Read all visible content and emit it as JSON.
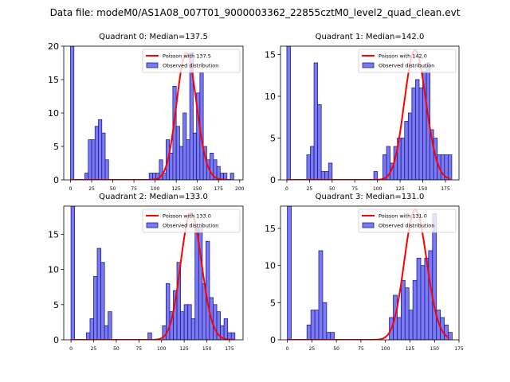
{
  "suptitle": "Data file: modeM0/AS1A08_007T01_9000003362_22855cztM0_level2_quad_clean.evt",
  "colors": {
    "bar_fill": "#7b7bef",
    "bar_edge": "#1a1aa0",
    "line": "#ff0000",
    "axes": "#000000"
  },
  "chart_data": [
    {
      "type": "bar",
      "title": "Quadrant 0: Median=137.5",
      "xlim": [
        -8,
        204
      ],
      "ylim": [
        0,
        20
      ],
      "xticks": [
        0,
        25,
        50,
        75,
        100,
        125,
        150,
        175,
        200
      ],
      "yticks": [
        0,
        5,
        10,
        15,
        20
      ],
      "bin_width": 4,
      "bars": [
        {
          "x": 0,
          "h": 20
        },
        {
          "x": 17,
          "h": 1
        },
        {
          "x": 21,
          "h": 6
        },
        {
          "x": 25,
          "h": 6
        },
        {
          "x": 29,
          "h": 8
        },
        {
          "x": 33,
          "h": 9
        },
        {
          "x": 37,
          "h": 7
        },
        {
          "x": 41,
          "h": 3
        },
        {
          "x": 93,
          "h": 1
        },
        {
          "x": 97,
          "h": 1
        },
        {
          "x": 101,
          "h": 1
        },
        {
          "x": 105,
          "h": 3
        },
        {
          "x": 109,
          "h": 1
        },
        {
          "x": 113,
          "h": 6
        },
        {
          "x": 117,
          "h": 4
        },
        {
          "x": 121,
          "h": 14
        },
        {
          "x": 125,
          "h": 8
        },
        {
          "x": 129,
          "h": 5
        },
        {
          "x": 133,
          "h": 10
        },
        {
          "x": 137,
          "h": 6
        },
        {
          "x": 141,
          "h": 19
        },
        {
          "x": 145,
          "h": 7
        },
        {
          "x": 149,
          "h": 13
        },
        {
          "x": 153,
          "h": 16
        },
        {
          "x": 157,
          "h": 5
        },
        {
          "x": 161,
          "h": 3
        },
        {
          "x": 165,
          "h": 4
        },
        {
          "x": 169,
          "h": 3
        },
        {
          "x": 173,
          "h": 2
        },
        {
          "x": 177,
          "h": 1
        },
        {
          "x": 181,
          "h": 1
        },
        {
          "x": 189,
          "h": 1
        }
      ],
      "poisson": {
        "lambda": 137.5,
        "peak": 19,
        "x_range": [
          0,
          190
        ],
        "label": "Poisson with 137.5"
      },
      "legend": [
        "Poisson with 137.5",
        "Observed distribution"
      ],
      "legend_position": "top-right"
    },
    {
      "type": "bar",
      "title": "Quadrant 1: Median=142.0",
      "xlim": [
        -7,
        190
      ],
      "ylim": [
        0,
        16
      ],
      "xticks": [
        0,
        25,
        50,
        75,
        100,
        125,
        150,
        175
      ],
      "yticks": [
        0,
        5,
        10,
        15
      ],
      "bin_width": 4,
      "bars": [
        {
          "x": 0,
          "h": 16
        },
        {
          "x": 22,
          "h": 3
        },
        {
          "x": 26,
          "h": 4
        },
        {
          "x": 30,
          "h": 14
        },
        {
          "x": 34,
          "h": 9
        },
        {
          "x": 38,
          "h": 1
        },
        {
          "x": 42,
          "h": 1
        },
        {
          "x": 46,
          "h": 2
        },
        {
          "x": 96,
          "h": 1
        },
        {
          "x": 106,
          "h": 3
        },
        {
          "x": 110,
          "h": 4
        },
        {
          "x": 114,
          "h": 2
        },
        {
          "x": 118,
          "h": 4
        },
        {
          "x": 122,
          "h": 5
        },
        {
          "x": 126,
          "h": 5
        },
        {
          "x": 130,
          "h": 7
        },
        {
          "x": 134,
          "h": 8
        },
        {
          "x": 138,
          "h": 11
        },
        {
          "x": 142,
          "h": 12
        },
        {
          "x": 146,
          "h": 11
        },
        {
          "x": 150,
          "h": 13
        },
        {
          "x": 154,
          "h": 14
        },
        {
          "x": 158,
          "h": 6
        },
        {
          "x": 162,
          "h": 5
        },
        {
          "x": 166,
          "h": 3
        },
        {
          "x": 170,
          "h": 3
        },
        {
          "x": 174,
          "h": 3
        },
        {
          "x": 178,
          "h": 3
        }
      ],
      "poisson": {
        "lambda": 142.0,
        "peak": 15.5,
        "x_range": [
          0,
          180
        ],
        "label": "Poisson with 142.0"
      },
      "legend": [
        "Poisson with 142.0",
        "Observed distribution"
      ],
      "legend_position": "top-right"
    },
    {
      "type": "bar",
      "title": "Quadrant 2: Median=133.0",
      "xlim": [
        -8,
        190
      ],
      "ylim": [
        0,
        19
      ],
      "xticks": [
        0,
        25,
        50,
        75,
        100,
        125,
        150,
        175
      ],
      "yticks": [
        0,
        5,
        10,
        15
      ],
      "bin_width": 4,
      "bars": [
        {
          "x": 0,
          "h": 19
        },
        {
          "x": 17,
          "h": 1
        },
        {
          "x": 21,
          "h": 3
        },
        {
          "x": 25,
          "h": 9
        },
        {
          "x": 29,
          "h": 13
        },
        {
          "x": 33,
          "h": 11
        },
        {
          "x": 37,
          "h": 2
        },
        {
          "x": 41,
          "h": 4
        },
        {
          "x": 85,
          "h": 1
        },
        {
          "x": 101,
          "h": 2
        },
        {
          "x": 105,
          "h": 8
        },
        {
          "x": 109,
          "h": 4
        },
        {
          "x": 113,
          "h": 7
        },
        {
          "x": 117,
          "h": 11
        },
        {
          "x": 121,
          "h": 4
        },
        {
          "x": 125,
          "h": 5
        },
        {
          "x": 129,
          "h": 5
        },
        {
          "x": 133,
          "h": 3
        },
        {
          "x": 137,
          "h": 16
        },
        {
          "x": 141,
          "h": 16
        },
        {
          "x": 145,
          "h": 8
        },
        {
          "x": 149,
          "h": 14
        },
        {
          "x": 153,
          "h": 6
        },
        {
          "x": 157,
          "h": 5
        },
        {
          "x": 161,
          "h": 4
        },
        {
          "x": 165,
          "h": 2
        },
        {
          "x": 169,
          "h": 3
        },
        {
          "x": 173,
          "h": 1
        },
        {
          "x": 177,
          "h": 1
        }
      ],
      "poisson": {
        "lambda": 133.0,
        "peak": 18,
        "x_range": [
          0,
          180
        ],
        "label": "Poisson with 133.0"
      },
      "legend": [
        "Poisson with 133.0",
        "Observed distribution"
      ],
      "legend_position": "top-right"
    },
    {
      "type": "bar",
      "title": "Quadrant 3: Median=131.0",
      "xlim": [
        -7,
        175
      ],
      "ylim": [
        0,
        18
      ],
      "xticks": [
        0,
        25,
        50,
        75,
        100,
        125,
        150,
        175
      ],
      "yticks": [
        0,
        5,
        10,
        15
      ],
      "bin_width": 4,
      "bars": [
        {
          "x": 0,
          "h": 18
        },
        {
          "x": 20,
          "h": 2
        },
        {
          "x": 24,
          "h": 4
        },
        {
          "x": 28,
          "h": 4
        },
        {
          "x": 32,
          "h": 12
        },
        {
          "x": 36,
          "h": 5
        },
        {
          "x": 40,
          "h": 1
        },
        {
          "x": 44,
          "h": 1
        },
        {
          "x": 104,
          "h": 3
        },
        {
          "x": 108,
          "h": 6
        },
        {
          "x": 112,
          "h": 3
        },
        {
          "x": 116,
          "h": 8
        },
        {
          "x": 120,
          "h": 7
        },
        {
          "x": 124,
          "h": 4
        },
        {
          "x": 128,
          "h": 8
        },
        {
          "x": 132,
          "h": 11
        },
        {
          "x": 136,
          "h": 10
        },
        {
          "x": 140,
          "h": 11
        },
        {
          "x": 144,
          "h": 12
        },
        {
          "x": 148,
          "h": 17
        },
        {
          "x": 152,
          "h": 4
        },
        {
          "x": 156,
          "h": 3
        },
        {
          "x": 160,
          "h": 2
        },
        {
          "x": 164,
          "h": 1
        }
      ],
      "poisson": {
        "lambda": 131.0,
        "peak": 17.5,
        "x_range": [
          0,
          165
        ],
        "label": "Poisson with 131.0"
      },
      "legend": [
        "Poisson with 131.0",
        "Observed distribution"
      ],
      "legend_position": "top-right"
    }
  ]
}
